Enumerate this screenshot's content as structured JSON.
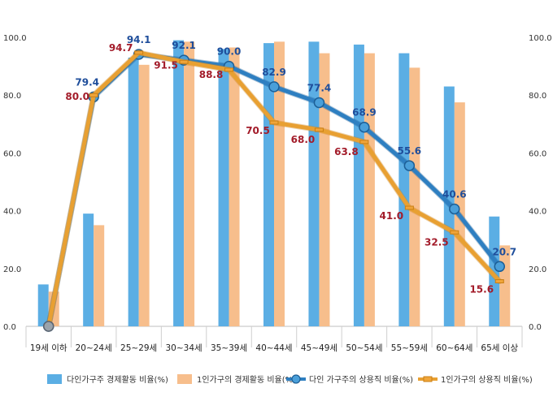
{
  "chart_data": {
    "type": "bar",
    "title": "",
    "xlabel": "",
    "ylabel": "",
    "ylim": [
      0,
      100
    ],
    "y_ticks": [
      "0.0",
      "20.0",
      "40.0",
      "60.0",
      "80.0",
      "100.0"
    ],
    "y2_ticks": [
      "0.0",
      "20.0",
      "40.0",
      "60.0",
      "80.0",
      "100.0"
    ],
    "categories": [
      "19세 이하",
      "20~24세",
      "25~29세",
      "30~34세",
      "35~39세",
      "40~44세",
      "45~49세",
      "50~54세",
      "55~59세",
      "60~64세",
      "65세 이상"
    ],
    "series": [
      {
        "name": "다인가구주 경제활동 비율(%)",
        "kind": "bar",
        "color": "#5BAEE4",
        "values": [
          14.5,
          39.0,
          93.0,
          99.0,
          96.0,
          98.0,
          98.5,
          97.5,
          94.5,
          83.0,
          38.0
        ]
      },
      {
        "name": "1인가구의 경제활동 비율(%)",
        "kind": "bar",
        "color": "#F7BE8C",
        "values": [
          12.0,
          35.0,
          90.5,
          98.5,
          96.5,
          98.5,
          94.5,
          94.5,
          89.5,
          77.5,
          28.0
        ]
      },
      {
        "name": "다인 가구주의 상용직 비율(%)",
        "kind": "line",
        "color": "#2E7FC1",
        "label_color": "#1F4E9B",
        "values": [
          0,
          79.4,
          94.1,
          92.1,
          90.0,
          82.9,
          77.4,
          68.9,
          55.6,
          40.6,
          20.7
        ],
        "labels": [
          null,
          "79.4",
          "94.1",
          "92.1",
          "90.0",
          "82.9",
          "77.4",
          "68.9",
          "55.6",
          "40.6",
          "20.7"
        ]
      },
      {
        "name": "1인가구의 상용직 비율(%)",
        "kind": "line",
        "color": "#E8A032",
        "label_color": "#A31C2A",
        "values": [
          0,
          80.0,
          94.7,
          91.5,
          88.8,
          70.5,
          68.0,
          63.8,
          41.0,
          32.5,
          15.6
        ],
        "labels": [
          null,
          "80.0",
          "94.7",
          "91.5",
          "88.8",
          "70.5",
          "68.0",
          "63.8",
          "41.0",
          "32.5",
          "15.6"
        ]
      }
    ],
    "grid": false,
    "legend_position": "bottom"
  }
}
